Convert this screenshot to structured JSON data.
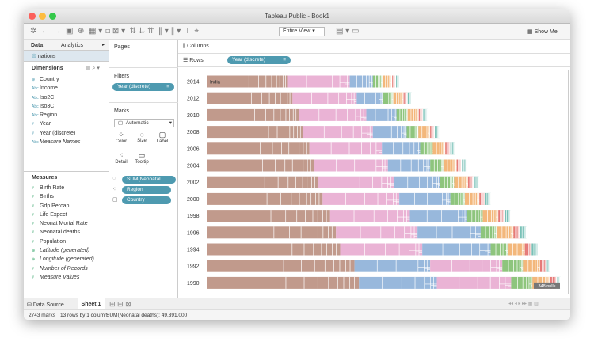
{
  "window": {
    "title": "Tableau Public - Book1"
  },
  "toolbar": {
    "fit": "Entire View",
    "show_me": "Show Me"
  },
  "data_pane": {
    "tabs": [
      "Data",
      "Analytics"
    ],
    "source": "nations",
    "dimensions_header": "Dimensions",
    "dimensions": [
      "Country",
      "Income",
      "Iso2C",
      "Iso3C",
      "Region",
      "Year",
      "Year (discrete)",
      "Measure Names"
    ],
    "measures_header": "Measures",
    "measures": [
      "Birth Rate",
      "Births",
      "Gdp Percap",
      "Life Expect",
      "Neonat Mortal Rate",
      "Neonatal deaths",
      "Population",
      "Latitude (generated)",
      "Longitude (generated)",
      "Number of Records",
      "Measure Values"
    ]
  },
  "shelves": {
    "pages": "Pages",
    "filters": "Filters",
    "filter_pill": "Year (discrete)",
    "marks": "Marks",
    "mark_type": "Automatic",
    "mark_buttons": [
      "Color",
      "Size",
      "Label",
      "Detail",
      "Tooltip"
    ],
    "mark_pills": [
      "SUM(Neonatal ...",
      "Region",
      "Country"
    ],
    "columns": "Columns",
    "rows": "Rows",
    "rows_pill": "Year (discrete)"
  },
  "view": {
    "years": [
      "2014",
      "2012",
      "2010",
      "2008",
      "2006",
      "2004",
      "2002",
      "2000",
      "1998",
      "1996",
      "1994",
      "1992",
      "1990"
    ],
    "first_label": "India",
    "nulls": "348 nulls"
  },
  "tabs": [
    "Data Source",
    "Sheet 1"
  ],
  "status": [
    "2743 marks",
    "13 rows by 1 column",
    "SUM(Neonatal deaths): 49,391,000"
  ]
}
